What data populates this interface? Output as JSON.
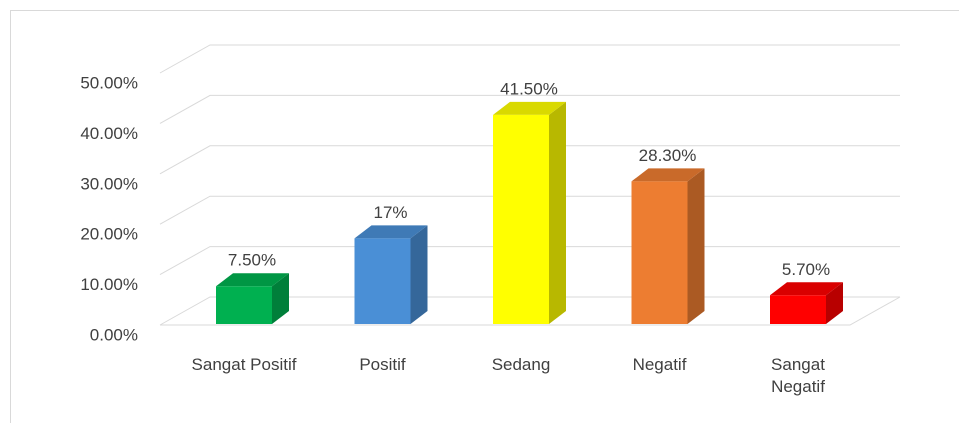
{
  "chart_data": {
    "type": "bar3d",
    "categories": [
      "Sangat Positif",
      "Positif",
      "Sedang",
      "Negatif",
      "Sangat Negatif"
    ],
    "values": [
      7.5,
      17,
      41.5,
      28.3,
      5.7
    ],
    "value_labels": [
      "7.50%",
      "17%",
      "41.50%",
      "28.30%",
      "5.70%"
    ],
    "colors": [
      "#00b050",
      "#4a8fd6",
      "#ffff00",
      "#ed7d31",
      "#ff0000"
    ],
    "ylim": [
      0,
      50
    ],
    "yticks": [
      {
        "value": 0,
        "label": "0.00%"
      },
      {
        "value": 10,
        "label": "10.00%"
      },
      {
        "value": 20,
        "label": "20.00%"
      },
      {
        "value": 30,
        "label": "30.00%"
      },
      {
        "value": 40,
        "label": "40.00%"
      },
      {
        "value": 50,
        "label": "50.00%"
      }
    ],
    "grid": true
  }
}
